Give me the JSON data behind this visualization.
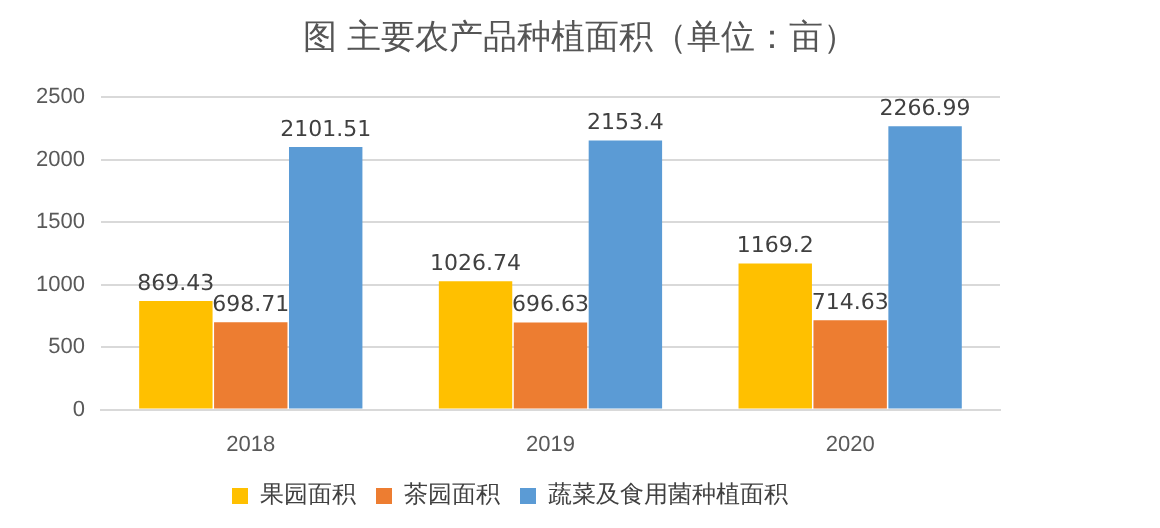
{
  "chart_data": {
    "type": "bar",
    "title": "图  主要农产品种植面积（单位：亩）",
    "categories": [
      "2018",
      "2019",
      "2020"
    ],
    "series": [
      {
        "name": "果园面积",
        "color": "#ffc000",
        "values": [
          869.43,
          1026.74,
          1169.2
        ]
      },
      {
        "name": "茶园面积",
        "color": "#ed7d31",
        "values": [
          698.71,
          696.63,
          714.63
        ]
      },
      {
        "name": "蔬菜及食用菌种植面积",
        "color": "#5b9bd5",
        "values": [
          2101.51,
          2153.4,
          2266.99
        ]
      }
    ],
    "ylim": [
      0,
      2500
    ],
    "yticks": [
      0,
      500,
      1000,
      1500,
      2000,
      2500
    ],
    "grid": "y",
    "legend": "bottom",
    "data_labels": true
  }
}
